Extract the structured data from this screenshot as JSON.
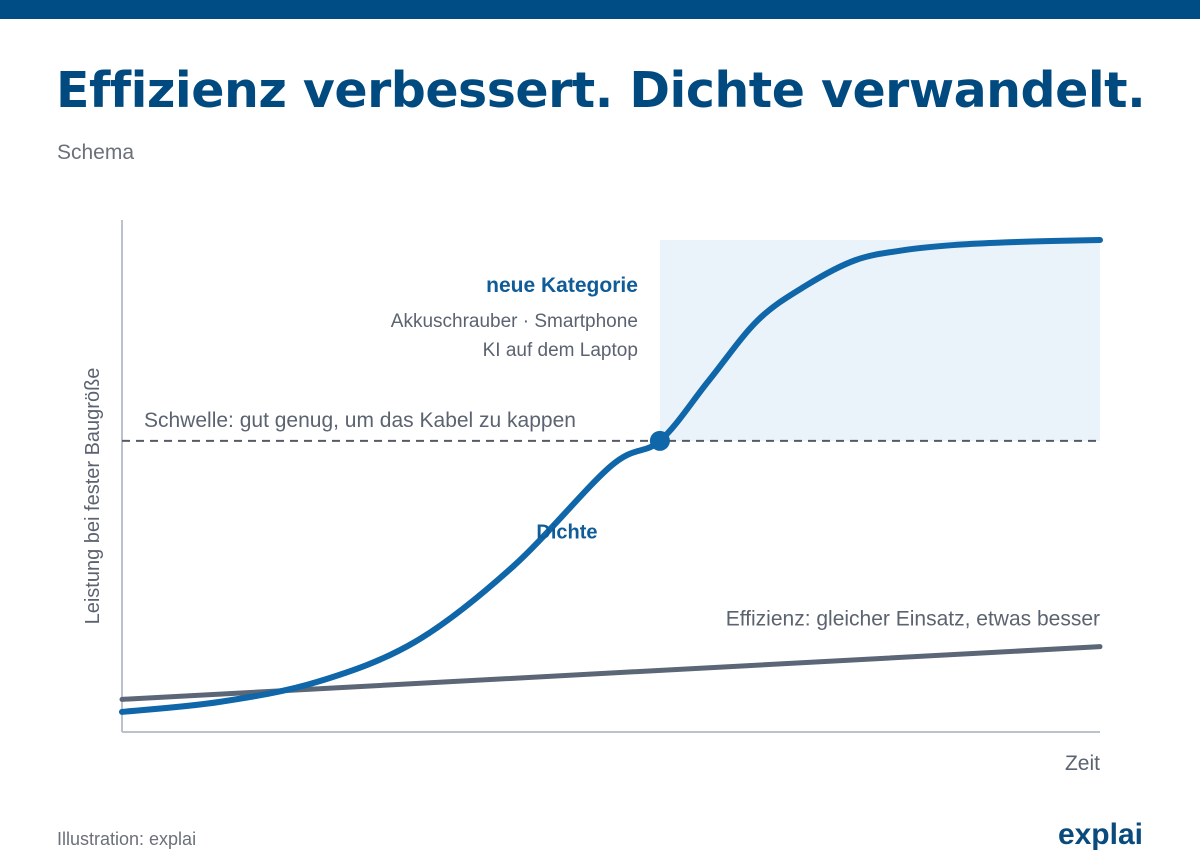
{
  "header": {
    "title": "Effizienz verbessert. Dichte verwandelt.",
    "subtitle": "Schema"
  },
  "footer": {
    "source": "Illustration: explai",
    "logo": "explai"
  },
  "colors": {
    "brand_bar": "#004c84",
    "title": "#014a80",
    "density_curve": "#0f66a8",
    "efficiency_line": "#5b6677",
    "region_fill": "#eaf2fa",
    "threshold": "#555b66",
    "axis": "#bcc2cb"
  },
  "chart_data": {
    "type": "line",
    "xlabel": "Zeit",
    "ylabel": "Leistung bei fester Baugröße",
    "xlim": [
      0,
      100
    ],
    "ylim": [
      0,
      100
    ],
    "ticks": "none",
    "grid": false,
    "series": [
      {
        "name": "Dichte",
        "x": [
          0,
          10,
          20,
          30,
          40,
          50,
          55,
          60,
          65,
          70,
          75,
          80,
          85,
          90,
          95,
          100
        ],
        "y": [
          4,
          6,
          10,
          18,
          33,
          53,
          58,
          70,
          82,
          89,
          94,
          96,
          97,
          97.5,
          97.8,
          98
        ]
      },
      {
        "name": "Effizienz",
        "x": [
          0,
          100
        ],
        "y": [
          6.5,
          17
        ]
      }
    ],
    "threshold": {
      "y": 58,
      "label": "Schwelle: gut genug, um das Kabel zu kappen"
    },
    "crossing_point": {
      "x": 55,
      "y": 58
    },
    "highlight_region": {
      "x": [
        55,
        100
      ],
      "y": [
        58,
        98
      ],
      "title": "neue Kategorie",
      "examples_line1": "Akkuschrauber · Smartphone",
      "examples_line2": "KI auf dem Laptop"
    },
    "annotations": {
      "density_label": "Dichte",
      "efficiency_label": "Effizienz: gleicher Einsatz, etwas besser"
    }
  }
}
